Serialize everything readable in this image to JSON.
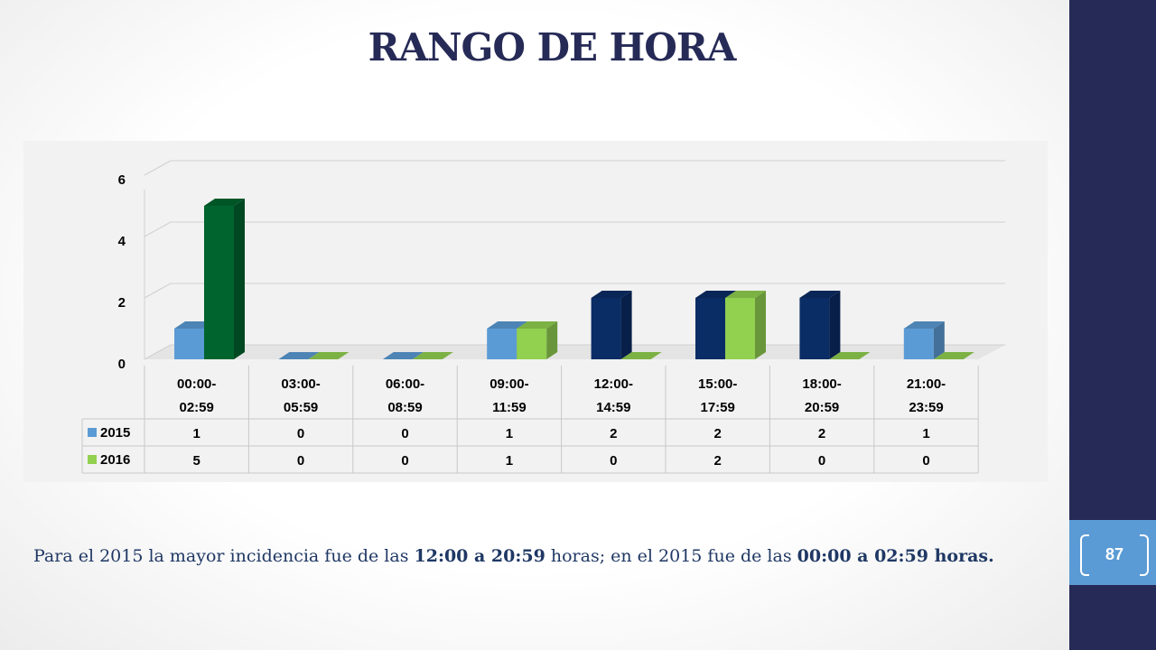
{
  "slide": {
    "title": "RANGO DE HORA",
    "page_number": "87",
    "caption": {
      "p1": "Para el 2015 la mayor incidencia fue de las ",
      "b1": "12:00 a 20:59",
      "p2": " horas; en el 2015 fue de las ",
      "b2": "00:00 a 02:59 horas."
    }
  },
  "chart_data": {
    "type": "bar",
    "title": "",
    "xlabel": "",
    "ylabel": "",
    "ylim": [
      0,
      6
    ],
    "yticks": [
      "0",
      "2",
      "4",
      "6"
    ],
    "grid": true,
    "legend": "data-table",
    "categories": [
      [
        "00:00-",
        "02:59"
      ],
      [
        "03:00-",
        "05:59"
      ],
      [
        "06:00-",
        "08:59"
      ],
      [
        "09:00-",
        "11:59"
      ],
      [
        "12:00-",
        "14:59"
      ],
      [
        "15:00-",
        "17:59"
      ],
      [
        "18:00-",
        "20:59"
      ],
      [
        "21:00-",
        "23:59"
      ]
    ],
    "series": [
      {
        "name": "2015",
        "values": [
          1,
          0,
          0,
          1,
          2,
          2,
          2,
          1
        ],
        "color": "#5b9bd5"
      },
      {
        "name": "2016",
        "values": [
          5,
          0,
          0,
          1,
          0,
          2,
          0,
          0
        ],
        "color": "#92d050"
      }
    ],
    "highlight_colors": {
      "2015": "#0b2d65",
      "2016": "#00642e"
    }
  }
}
